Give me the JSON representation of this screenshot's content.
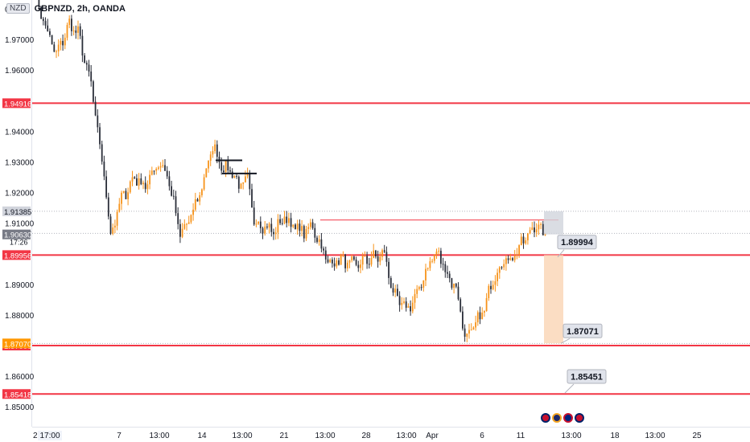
{
  "header": {
    "badge": "NZD",
    "title": "GBPNZD, 2h, OANDA"
  },
  "chart_data": {
    "type": "candlestick",
    "symbol": "GBPNZD",
    "interval": "2h",
    "exchange": "OANDA",
    "y_axis": {
      "min": 1.845,
      "max": 1.982,
      "ticks": [
        {
          "value": 1.97,
          "label": "1.97000"
        },
        {
          "value": 1.96,
          "label": "1.96000"
        },
        {
          "value": 1.94,
          "label": "1.94000"
        },
        {
          "value": 1.93,
          "label": "1.93000"
        },
        {
          "value": 1.92,
          "label": "1.92000"
        },
        {
          "value": 1.91,
          "label": "1.91000"
        },
        {
          "value": 1.89,
          "label": "1.89000"
        },
        {
          "value": 1.88,
          "label": "1.88000"
        },
        {
          "value": 1.86,
          "label": "1.86000"
        },
        {
          "value": 1.85,
          "label": "1.85000"
        }
      ],
      "partial_top_label": "0"
    },
    "x_axis": {
      "ticks": [
        "17:00",
        "7",
        "13:00",
        "14",
        "13:00",
        "21",
        "13:00",
        "28",
        "13:00",
        "Apr",
        "6",
        "11",
        "13:00",
        "18",
        "13:00",
        "25"
      ],
      "cut_label": "2"
    },
    "horizontal_levels": [
      {
        "value": 1.94916,
        "label": "1.94916",
        "color": "#f23645"
      },
      {
        "value": 1.89956,
        "label": "1.89956",
        "color": "#f23645"
      },
      {
        "value": 1.87,
        "label": "1.87000",
        "color": "#f23645"
      },
      {
        "value": 1.85418,
        "label": "1.85418",
        "color": "#f23645"
      }
    ],
    "price_labels": [
      {
        "value": 1.91385,
        "label": "1.91385",
        "color": "#d1d4dc",
        "text_color": "#131722"
      },
      {
        "value": 1.90665,
        "label": "1.90665",
        "sub": "17:26",
        "color": "#ffffff",
        "text_color": "#131722"
      },
      {
        "value": 1.9063,
        "label": "1.90630",
        "color": "#787b86",
        "text_color": "#ffffff"
      },
      {
        "value": 1.8707,
        "label": "1.87070",
        "color": "#ff9800",
        "text_color": "#ffffff"
      }
    ],
    "callouts": [
      {
        "value": 1.89994,
        "label": "1.89994"
      },
      {
        "value": 1.87071,
        "label": "1.87071"
      },
      {
        "value": 1.85451,
        "label": "1.85451"
      }
    ],
    "resistance_segment": {
      "value": 1.911
    },
    "black_markers": [
      1.9305,
      1.9262
    ],
    "path": [
      [
        0,
        1.985
      ],
      [
        6,
        1.972
      ],
      [
        10,
        1.965
      ],
      [
        16,
        1.975
      ],
      [
        20,
        1.972
      ],
      [
        26,
        1.955
      ],
      [
        29,
        1.94
      ],
      [
        33,
        1.92
      ],
      [
        35,
        1.906
      ],
      [
        40,
        1.918
      ],
      [
        46,
        1.925
      ],
      [
        51,
        1.922
      ],
      [
        57,
        1.93
      ],
      [
        61,
        1.926
      ],
      [
        65,
        1.913
      ],
      [
        67,
        1.906
      ],
      [
        72,
        1.912
      ],
      [
        77,
        1.922
      ],
      [
        82,
        1.935
      ],
      [
        87,
        1.928
      ],
      [
        91,
        1.927
      ],
      [
        94,
        1.922
      ],
      [
        98,
        1.924
      ],
      [
        101,
        1.911
      ],
      [
        106,
        1.909
      ],
      [
        110,
        1.907
      ],
      [
        115,
        1.912
      ],
      [
        119,
        1.909
      ],
      [
        124,
        1.907
      ],
      [
        128,
        1.909
      ],
      [
        132,
        1.902
      ],
      [
        135,
        1.897
      ],
      [
        141,
        1.898
      ],
      [
        147,
        1.896
      ],
      [
        153,
        1.898
      ],
      [
        158,
        1.899
      ],
      [
        161,
        1.9
      ],
      [
        165,
        1.887
      ],
      [
        170,
        1.882
      ],
      [
        174,
        1.884
      ],
      [
        178,
        1.89
      ],
      [
        182,
        1.898
      ],
      [
        186,
        1.9
      ],
      [
        190,
        1.893
      ],
      [
        194,
        1.889
      ],
      [
        197,
        1.877
      ],
      [
        199,
        1.872
      ],
      [
        203,
        1.877
      ],
      [
        207,
        1.882
      ],
      [
        211,
        1.892
      ],
      [
        215,
        1.897
      ],
      [
        220,
        1.899
      ],
      [
        224,
        1.903
      ],
      [
        228,
        1.907
      ],
      [
        231,
        1.91
      ],
      [
        233,
        1.907
      ],
      [
        235,
        1.906
      ]
    ]
  },
  "events": [
    "event-flag",
    "event-moon",
    "event-flag"
  ]
}
